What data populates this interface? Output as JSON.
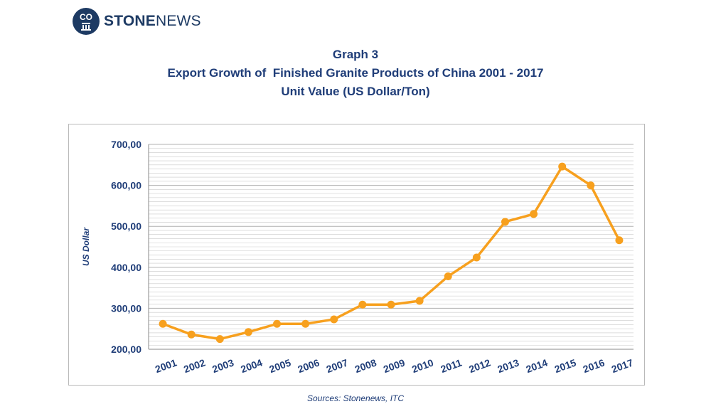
{
  "logo": {
    "text_bold": "STONE",
    "text_light": "NEWS",
    "mark_letters": "CO"
  },
  "titles": {
    "line1": "Graph 3",
    "line2": "Export Growth of  Finished Granite Products of China 2001 - 2017",
    "line3": "Unit Value (US Dollar/Ton)"
  },
  "source": "Sources: Stonenews, ITC",
  "colors": {
    "line": "#f7a01e",
    "text": "#1f3d78",
    "grid": "#c9c9c9"
  },
  "chart_data": {
    "type": "line",
    "title": "Unit Value (US Dollar/Ton)",
    "xlabel": "",
    "ylabel": "US Dollar",
    "categories": [
      "2001",
      "2002",
      "2003",
      "2004",
      "2005",
      "2006",
      "2007",
      "2008",
      "2009",
      "2010",
      "2011",
      "2012",
      "2013",
      "2014",
      "2015",
      "2016",
      "2017"
    ],
    "series": [
      {
        "values": [
          262,
          236,
          225,
          242,
          262,
          262,
          273,
          309,
          309,
          318,
          378,
          424,
          511,
          530,
          646,
          600,
          466
        ]
      }
    ],
    "ylim": [
      200,
      700
    ],
    "yticks": [
      200,
      300,
      400,
      500,
      600,
      700
    ],
    "ytick_labels": [
      "200,00",
      "300,00",
      "400,00",
      "500,00",
      "600,00",
      "700,00"
    ],
    "minor_grid_step": 10,
    "grid": true,
    "legend": "none"
  }
}
